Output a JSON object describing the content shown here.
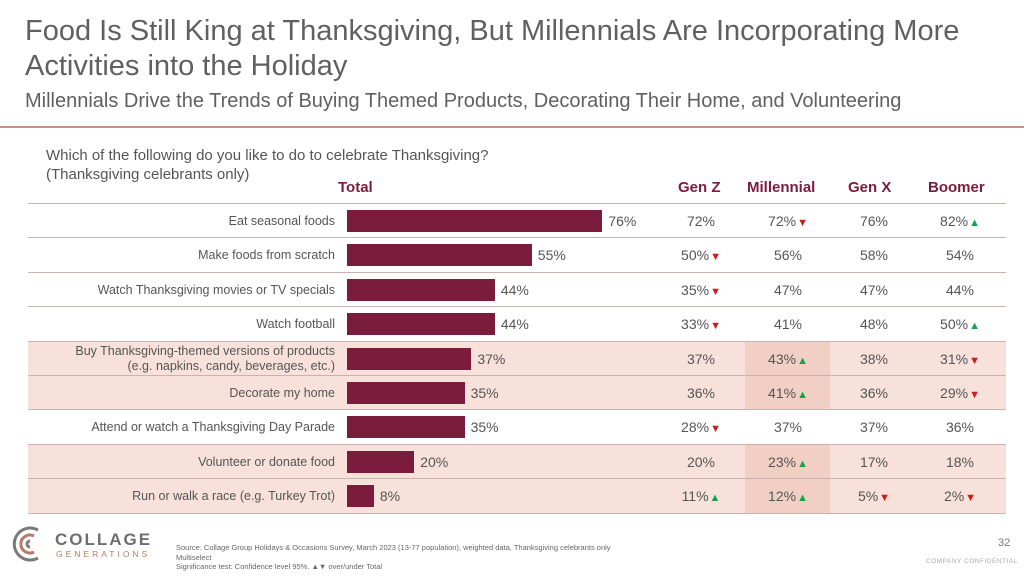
{
  "title": "Food Is Still King at Thanksgiving, But Millennials Are Incorporating More Activities into the Holiday",
  "subtitle": "Millennials Drive the Trends of Buying Themed Products, Decorating Their Home, and Volunteering",
  "question_line1": "Which of the following do you like to do to celebrate Thanksgiving?",
  "question_line2": "(Thanksgiving  celebrants only)",
  "headers": {
    "total": "Total",
    "genz": "Gen Z",
    "millennial": "Millennial",
    "genx": "Gen X",
    "boomer": "Boomer"
  },
  "colors": {
    "bar": "#7b1c3c",
    "header": "#7b1c3c",
    "shade": "#f7e1da",
    "up": "#16a34a",
    "down": "#c81e1e",
    "rule": "#c8937c"
  },
  "chart_data": {
    "type": "bar",
    "orientation": "horizontal",
    "categories": [
      "Eat seasonal foods",
      "Make foods from scratch",
      "Watch Thanksgiving movies or TV specials",
      "Watch football",
      "Buy Thanksgiving-themed versions of products (e.g. napkins, candy, beverages, etc.)",
      "Decorate my home",
      "Attend or watch a Thanksgiving Day Parade",
      "Volunteer or donate food",
      "Run or walk a race (e.g. Turkey Trot)"
    ],
    "series": [
      {
        "name": "Total",
        "values": [
          76,
          55,
          44,
          44,
          37,
          35,
          35,
          20,
          8
        ]
      }
    ],
    "value_labels": [
      "76%",
      "55%",
      "44%",
      "44%",
      "37%",
      "35%",
      "35%",
      "20%",
      "8%"
    ],
    "xlim": [
      0,
      100
    ]
  },
  "rows": [
    {
      "label1": "Eat seasonal foods",
      "label2": "",
      "shaded": false,
      "genz": {
        "v": "72%",
        "s": ""
      },
      "millennial": {
        "v": "72%",
        "s": "down"
      },
      "genx": {
        "v": "76%",
        "s": ""
      },
      "boomer": {
        "v": "82%",
        "s": "up"
      }
    },
    {
      "label1": "Make foods from scratch",
      "label2": "",
      "shaded": false,
      "genz": {
        "v": "50%",
        "s": "down"
      },
      "millennial": {
        "v": "56%",
        "s": ""
      },
      "genx": {
        "v": "58%",
        "s": ""
      },
      "boomer": {
        "v": "54%",
        "s": ""
      }
    },
    {
      "label1": "Watch Thanksgiving movies or TV specials",
      "label2": "",
      "shaded": false,
      "genz": {
        "v": "35%",
        "s": "down"
      },
      "millennial": {
        "v": "47%",
        "s": ""
      },
      "genx": {
        "v": "47%",
        "s": ""
      },
      "boomer": {
        "v": "44%",
        "s": ""
      }
    },
    {
      "label1": "Watch football",
      "label2": "",
      "shaded": false,
      "genz": {
        "v": "33%",
        "s": "down"
      },
      "millennial": {
        "v": "41%",
        "s": ""
      },
      "genx": {
        "v": "48%",
        "s": ""
      },
      "boomer": {
        "v": "50%",
        "s": "up"
      }
    },
    {
      "label1": "Buy Thanksgiving-themed versions of products",
      "label2": "(e.g. napkins, candy, beverages, etc.)",
      "shaded": true,
      "genz": {
        "v": "37%",
        "s": ""
      },
      "millennial": {
        "v": "43%",
        "s": "up"
      },
      "genx": {
        "v": "38%",
        "s": ""
      },
      "boomer": {
        "v": "31%",
        "s": "down"
      }
    },
    {
      "label1": "Decorate my home",
      "label2": "",
      "shaded": true,
      "genz": {
        "v": "36%",
        "s": ""
      },
      "millennial": {
        "v": "41%",
        "s": "up"
      },
      "genx": {
        "v": "36%",
        "s": ""
      },
      "boomer": {
        "v": "29%",
        "s": "down"
      }
    },
    {
      "label1": "Attend or watch a Thanksgiving Day Parade",
      "label2": "",
      "shaded": false,
      "genz": {
        "v": "28%",
        "s": "down"
      },
      "millennial": {
        "v": "37%",
        "s": ""
      },
      "genx": {
        "v": "37%",
        "s": ""
      },
      "boomer": {
        "v": "36%",
        "s": ""
      }
    },
    {
      "label1": "Volunteer or donate food",
      "label2": "",
      "shaded": true,
      "genz": {
        "v": "20%",
        "s": ""
      },
      "millennial": {
        "v": "23%",
        "s": "up"
      },
      "genx": {
        "v": "17%",
        "s": ""
      },
      "boomer": {
        "v": "18%",
        "s": ""
      }
    },
    {
      "label1": "Run or walk a race (e.g. Turkey Trot)",
      "label2": "",
      "shaded": true,
      "genz": {
        "v": "11%",
        "s": "up"
      },
      "millennial": {
        "v": "12%",
        "s": "up"
      },
      "genx": {
        "v": "5%",
        "s": "down"
      },
      "boomer": {
        "v": "2%",
        "s": "down"
      }
    }
  ],
  "brand": {
    "name": "COLLAGE",
    "tagline": "GENERATIONS"
  },
  "footer": {
    "source": "Source: Collage Group Holidays & Occasions Survey, March 2023 (13-77 population), weighted data, Thanksgiving celebrants only",
    "multiselect": "Multiselect",
    "significance": "Significance test: Confidence level 95%. ▲▼ over/under Total",
    "page": "32",
    "confidential": "COMPANY CONFIDENTIAL"
  }
}
